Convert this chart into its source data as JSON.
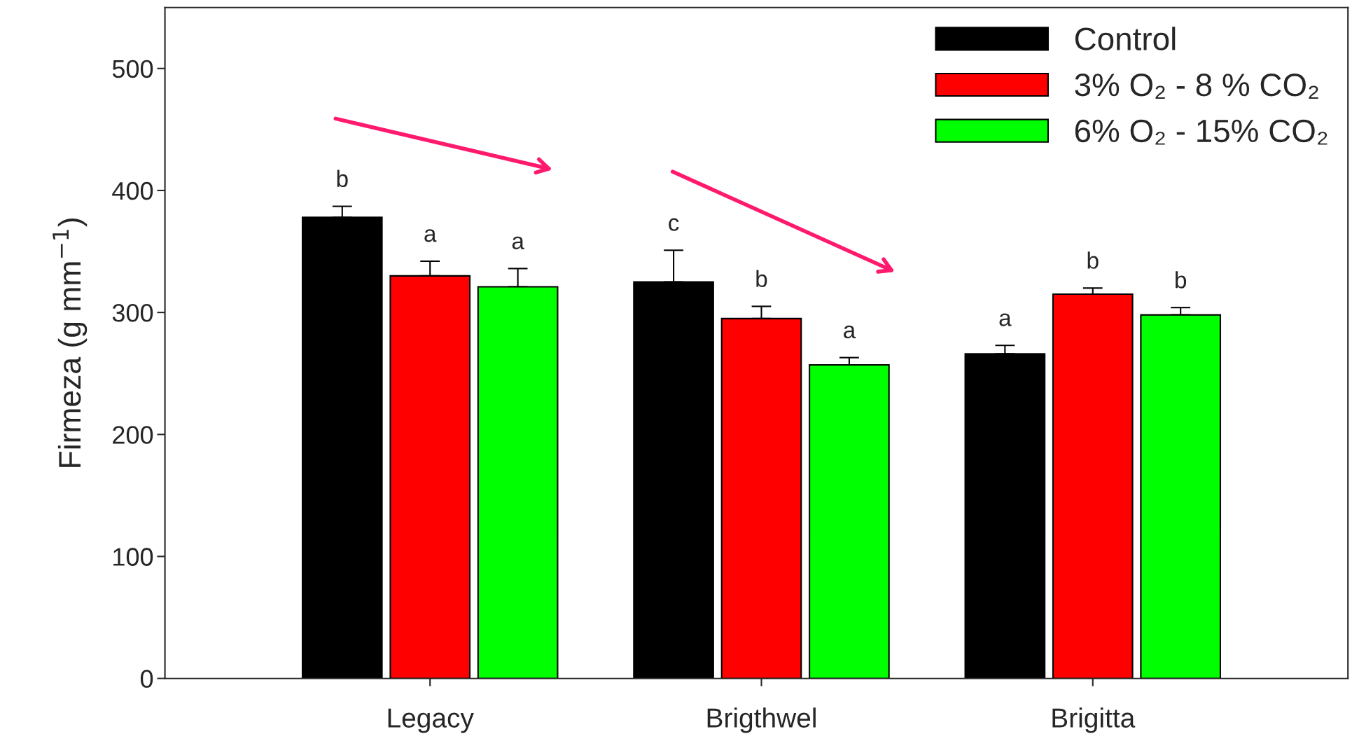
{
  "chart_data": {
    "type": "bar",
    "ylabel": "Firmeza (g mm$^{−1}$)",
    "categories": [
      "Legacy",
      "Brigthwel",
      "Brigitta"
    ],
    "series": [
      {
        "name": "Control",
        "color": "#000000",
        "values": [
          378,
          325,
          266
        ],
        "errors": [
          [
            378,
            387
          ],
          [
            325,
            351
          ],
          [
            266,
            273
          ]
        ],
        "value_labels": [
          "b",
          "c",
          "a"
        ]
      },
      {
        "name": "3% O₂ - 8 % CO₂",
        "color": "#ff0000",
        "values": [
          330,
          295,
          315
        ],
        "errors": [
          [
            330,
            342
          ],
          [
            295,
            305
          ],
          [
            315,
            320
          ]
        ],
        "value_labels": [
          "a",
          "b",
          "b"
        ]
      },
      {
        "name": "6% O₂ - 15% CO₂",
        "color": "#00ff00",
        "values": [
          321,
          257,
          298
        ],
        "errors": [
          [
            321,
            336
          ],
          [
            257,
            263
          ],
          [
            298,
            304
          ]
        ],
        "value_labels": [
          "a",
          "a",
          "b"
        ]
      }
    ],
    "ylim": [
      0,
      550
    ],
    "yticks": [
      0,
      100,
      200,
      300,
      400,
      500
    ],
    "grid": false,
    "legend": "top right"
  }
}
